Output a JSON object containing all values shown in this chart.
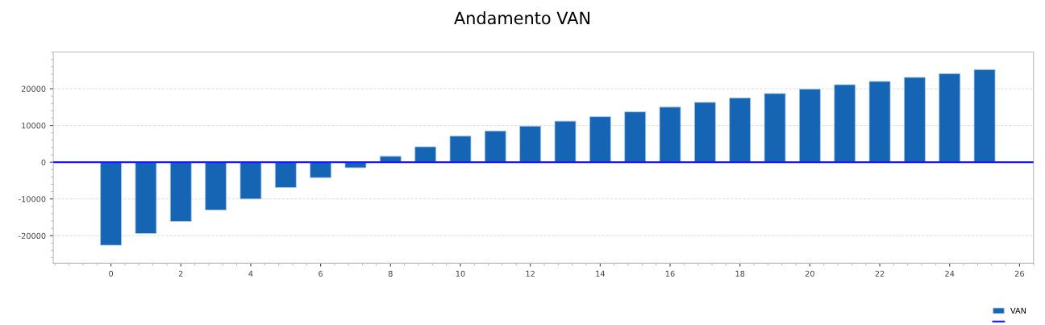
{
  "chart_data": {
    "type": "bar",
    "title": "Andamento VAN",
    "x": [
      0,
      1,
      2,
      3,
      4,
      5,
      6,
      7,
      8,
      9,
      10,
      11,
      12,
      13,
      14,
      15,
      16,
      17,
      18,
      19,
      20,
      21,
      22,
      23,
      24,
      25
    ],
    "series": [
      {
        "name": "VAN",
        "color": "#1565b4",
        "values": [
          -22600,
          -19400,
          -16100,
          -13000,
          -10000,
          -6900,
          -4200,
          -1500,
          1600,
          4200,
          7100,
          8500,
          9800,
          11200,
          12400,
          13700,
          15000,
          16300,
          17500,
          18700,
          19900,
          21100,
          22000,
          23100,
          24100,
          25200
        ]
      }
    ],
    "ref_lines": [
      {
        "axis": "y",
        "value": 0,
        "label": null,
        "color": "#1a1aff",
        "line_style": "solid"
      }
    ],
    "xlim": [
      -1.65,
      26.4
    ],
    "xticks": [
      0,
      2,
      4,
      6,
      8,
      10,
      12,
      14,
      16,
      18,
      20,
      22,
      24,
      26
    ],
    "ylim": [
      -27500,
      30000
    ],
    "yticks": [
      -20000,
      -10000,
      0,
      10000,
      20000
    ],
    "grid": "y",
    "legend": "bottom right"
  }
}
